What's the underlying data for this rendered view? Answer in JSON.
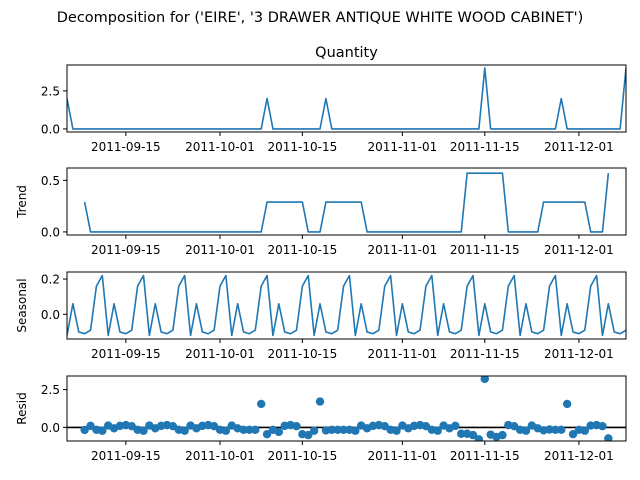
{
  "figure": {
    "suptitle": "Decomposition for ('EIRE', '3 DRAWER ANTIQUE WHITE WOOD CABINET')"
  },
  "colors": {
    "line": "#1f77b4",
    "axis": "#000000",
    "zero_line": "#000000"
  },
  "chart_data": [
    {
      "type": "line",
      "title": "Quantity",
      "ylabel": "",
      "xlim": [
        "2011-09-05",
        "2011-12-09"
      ],
      "ylim": [
        -0.2,
        4.2
      ],
      "xticks": [
        "2011-09-15",
        "2011-10-01",
        "2011-10-15",
        "2011-11-01",
        "2011-11-15",
        "2011-12-01"
      ],
      "yticks": [
        0.0,
        2.5
      ],
      "ytick_labels": [
        "0.0",
        "2.5"
      ],
      "series": [
        {
          "x": [
            "2011-09-05",
            "2011-09-06",
            "2011-09-07",
            "2011-09-08",
            "2011-09-09",
            "2011-09-10",
            "2011-09-11",
            "2011-09-12",
            "2011-09-13",
            "2011-09-14",
            "2011-09-15",
            "2011-09-16",
            "2011-09-17",
            "2011-09-18",
            "2011-09-19",
            "2011-09-20",
            "2011-09-21",
            "2011-09-22",
            "2011-09-23",
            "2011-09-24",
            "2011-09-25",
            "2011-09-26",
            "2011-09-27",
            "2011-09-28",
            "2011-09-29",
            "2011-09-30",
            "2011-10-01",
            "2011-10-02",
            "2011-10-03",
            "2011-10-04",
            "2011-10-05",
            "2011-10-06",
            "2011-10-07",
            "2011-10-08",
            "2011-10-09",
            "2011-10-10",
            "2011-10-11",
            "2011-10-12",
            "2011-10-13",
            "2011-10-14",
            "2011-10-15",
            "2011-10-16",
            "2011-10-17",
            "2011-10-18",
            "2011-10-19",
            "2011-10-20",
            "2011-10-21",
            "2011-10-22",
            "2011-10-23",
            "2011-10-24",
            "2011-10-25",
            "2011-10-26",
            "2011-10-27",
            "2011-10-28",
            "2011-10-29",
            "2011-10-30",
            "2011-10-31",
            "2011-11-01",
            "2011-11-02",
            "2011-11-03",
            "2011-11-04",
            "2011-11-05",
            "2011-11-06",
            "2011-11-07",
            "2011-11-08",
            "2011-11-09",
            "2011-11-10",
            "2011-11-11",
            "2011-11-12",
            "2011-11-13",
            "2011-11-14",
            "2011-11-15",
            "2011-11-16",
            "2011-11-17",
            "2011-11-18",
            "2011-11-19",
            "2011-11-20",
            "2011-11-21",
            "2011-11-22",
            "2011-11-23",
            "2011-11-24",
            "2011-11-25",
            "2011-11-26",
            "2011-11-27",
            "2011-11-28",
            "2011-11-29",
            "2011-11-30",
            "2011-12-01",
            "2011-12-02",
            "2011-12-03",
            "2011-12-04",
            "2011-12-05",
            "2011-12-06",
            "2011-12-07",
            "2011-12-08",
            "2011-12-09"
          ],
          "values": [
            2,
            0,
            0,
            0,
            0,
            0,
            0,
            0,
            0,
            0,
            0,
            0,
            0,
            0,
            0,
            0,
            0,
            0,
            0,
            0,
            0,
            0,
            0,
            0,
            0,
            0,
            0,
            0,
            0,
            0,
            0,
            0,
            0,
            0,
            2,
            0,
            0,
            0,
            0,
            0,
            0,
            0,
            0,
            0,
            2,
            0,
            0,
            0,
            0,
            0,
            0,
            0,
            0,
            0,
            0,
            0,
            0,
            0,
            0,
            0,
            0,
            0,
            0,
            0,
            0,
            0,
            0,
            0,
            0,
            0,
            0,
            4,
            0,
            0,
            0,
            0,
            0,
            0,
            0,
            0,
            0,
            0,
            0,
            0,
            2,
            0,
            0,
            0,
            0,
            0,
            0,
            0,
            0,
            0,
            0,
            4
          ]
        }
      ]
    },
    {
      "type": "line",
      "title": "",
      "ylabel": "Trend",
      "xlim": [
        "2011-09-05",
        "2011-12-09"
      ],
      "ylim": [
        -0.03,
        0.62
      ],
      "xticks": [
        "2011-09-15",
        "2011-10-01",
        "2011-10-15",
        "2011-11-01",
        "2011-11-15",
        "2011-12-01"
      ],
      "yticks": [
        0.0,
        0.5
      ],
      "ytick_labels": [
        "0.0",
        "0.5"
      ],
      "series": [
        {
          "x": [
            "2011-09-08",
            "2011-09-09",
            "2011-09-10",
            "2011-09-11",
            "2011-09-12",
            "2011-09-13",
            "2011-09-14",
            "2011-09-15",
            "2011-09-16",
            "2011-09-17",
            "2011-09-18",
            "2011-09-19",
            "2011-09-20",
            "2011-09-21",
            "2011-09-22",
            "2011-09-23",
            "2011-09-24",
            "2011-09-25",
            "2011-09-26",
            "2011-09-27",
            "2011-09-28",
            "2011-09-29",
            "2011-09-30",
            "2011-10-01",
            "2011-10-02",
            "2011-10-03",
            "2011-10-04",
            "2011-10-05",
            "2011-10-06",
            "2011-10-07",
            "2011-10-08",
            "2011-10-09",
            "2011-10-10",
            "2011-10-11",
            "2011-10-12",
            "2011-10-13",
            "2011-10-14",
            "2011-10-15",
            "2011-10-16",
            "2011-10-17",
            "2011-10-18",
            "2011-10-19",
            "2011-10-20",
            "2011-10-21",
            "2011-10-22",
            "2011-10-23",
            "2011-10-24",
            "2011-10-25",
            "2011-10-26",
            "2011-10-27",
            "2011-10-28",
            "2011-10-29",
            "2011-10-30",
            "2011-10-31",
            "2011-11-01",
            "2011-11-02",
            "2011-11-03",
            "2011-11-04",
            "2011-11-05",
            "2011-11-06",
            "2011-11-07",
            "2011-11-08",
            "2011-11-09",
            "2011-11-10",
            "2011-11-11",
            "2011-11-12",
            "2011-11-13",
            "2011-11-14",
            "2011-11-15",
            "2011-11-16",
            "2011-11-17",
            "2011-11-18",
            "2011-11-19",
            "2011-11-20",
            "2011-11-21",
            "2011-11-22",
            "2011-11-23",
            "2011-11-24",
            "2011-11-25",
            "2011-11-26",
            "2011-11-27",
            "2011-11-28",
            "2011-11-29",
            "2011-11-30",
            "2011-12-01",
            "2011-12-02",
            "2011-12-03",
            "2011-12-04",
            "2011-12-05",
            "2011-12-06"
          ],
          "values": [
            0.29,
            0.0,
            0.0,
            0.0,
            0.0,
            0.0,
            0.0,
            0.0,
            0.0,
            0.0,
            0.0,
            0.0,
            0.0,
            0.0,
            0.0,
            0.0,
            0.0,
            0.0,
            0.0,
            0.0,
            0.0,
            0.0,
            0.0,
            0.0,
            0.0,
            0.0,
            0.0,
            0.0,
            0.0,
            0.0,
            0.0,
            0.29,
            0.29,
            0.29,
            0.29,
            0.29,
            0.29,
            0.29,
            0.0,
            0.0,
            0.0,
            0.29,
            0.29,
            0.29,
            0.29,
            0.29,
            0.29,
            0.29,
            0.0,
            0.0,
            0.0,
            0.0,
            0.0,
            0.0,
            0.0,
            0.0,
            0.0,
            0.0,
            0.0,
            0.0,
            0.0,
            0.0,
            0.0,
            0.0,
            0.0,
            0.57,
            0.57,
            0.57,
            0.57,
            0.57,
            0.57,
            0.57,
            0.0,
            0.0,
            0.0,
            0.0,
            0.0,
            0.0,
            0.29,
            0.29,
            0.29,
            0.29,
            0.29,
            0.29,
            0.29,
            0.29,
            0.0,
            0.0,
            0.0,
            0.57
          ]
        }
      ]
    },
    {
      "type": "line",
      "title": "",
      "ylabel": "Seasonal",
      "xlim": [
        "2011-09-05",
        "2011-12-09"
      ],
      "ylim": [
        -0.14,
        0.24
      ],
      "xticks": [
        "2011-09-15",
        "2011-10-01",
        "2011-10-15",
        "2011-11-01",
        "2011-11-15",
        "2011-12-01"
      ],
      "yticks": [
        0.0,
        0.2
      ],
      "ytick_labels": [
        "0.0",
        "0.2"
      ],
      "period_values": [
        -0.12,
        0.06,
        -0.1,
        -0.11,
        -0.09,
        0.16,
        0.22
      ],
      "series": [
        {
          "x_start": "2011-09-05",
          "x_end": "2011-12-09"
        }
      ]
    },
    {
      "type": "scatter",
      "title": "",
      "ylabel": "Resid",
      "xlim": [
        "2011-09-05",
        "2011-12-09"
      ],
      "ylim": [
        -0.9,
        3.4
      ],
      "xticks": [
        "2011-09-15",
        "2011-10-01",
        "2011-10-15",
        "2011-11-01",
        "2011-11-15",
        "2011-12-01"
      ],
      "yticks": [
        0.0,
        2.5
      ],
      "ytick_labels": [
        "0.0",
        "2.5"
      ],
      "zero_line": true,
      "series": [
        {
          "x": [
            "2011-09-08",
            "2011-09-09",
            "2011-09-10",
            "2011-09-11",
            "2011-09-12",
            "2011-09-13",
            "2011-09-14",
            "2011-09-15",
            "2011-09-16",
            "2011-09-17",
            "2011-09-18",
            "2011-09-19",
            "2011-09-20",
            "2011-09-21",
            "2011-09-22",
            "2011-09-23",
            "2011-09-24",
            "2011-09-25",
            "2011-09-26",
            "2011-09-27",
            "2011-09-28",
            "2011-09-29",
            "2011-09-30",
            "2011-10-01",
            "2011-10-02",
            "2011-10-03",
            "2011-10-04",
            "2011-10-05",
            "2011-10-06",
            "2011-10-07",
            "2011-10-08",
            "2011-10-09",
            "2011-10-10",
            "2011-10-11",
            "2011-10-12",
            "2011-10-13",
            "2011-10-14",
            "2011-10-15",
            "2011-10-16",
            "2011-10-17",
            "2011-10-18",
            "2011-10-19",
            "2011-10-20",
            "2011-10-21",
            "2011-10-22",
            "2011-10-23",
            "2011-10-24",
            "2011-10-25",
            "2011-10-26",
            "2011-10-27",
            "2011-10-28",
            "2011-10-29",
            "2011-10-30",
            "2011-10-31",
            "2011-11-01",
            "2011-11-02",
            "2011-11-03",
            "2011-11-04",
            "2011-11-05",
            "2011-11-06",
            "2011-11-07",
            "2011-11-08",
            "2011-11-09",
            "2011-11-10",
            "2011-11-11",
            "2011-11-12",
            "2011-11-13",
            "2011-11-14",
            "2011-11-15",
            "2011-11-16",
            "2011-11-17",
            "2011-11-18",
            "2011-11-19",
            "2011-11-20",
            "2011-11-21",
            "2011-11-22",
            "2011-11-23",
            "2011-11-24",
            "2011-11-25",
            "2011-11-26",
            "2011-11-27",
            "2011-11-28",
            "2011-11-29",
            "2011-11-30",
            "2011-12-01",
            "2011-12-02",
            "2011-12-03",
            "2011-12-04",
            "2011-12-05",
            "2011-12-06"
          ],
          "values": [
            -0.17,
            0.1,
            -0.16,
            -0.22,
            0.12,
            -0.06,
            0.1,
            0.15,
            0.08,
            -0.16,
            -0.22,
            0.12,
            -0.06,
            0.1,
            0.15,
            0.08,
            -0.16,
            -0.22,
            0.12,
            -0.06,
            0.1,
            0.15,
            0.08,
            -0.16,
            -0.22,
            0.12,
            -0.06,
            -0.16,
            -0.16,
            -0.16,
            1.55,
            -0.45,
            -0.16,
            -0.3,
            0.1,
            0.15,
            0.08,
            -0.45,
            -0.51,
            -0.22,
            1.71,
            -0.2,
            -0.16,
            -0.16,
            -0.16,
            -0.16,
            -0.22,
            0.12,
            -0.06,
            0.1,
            0.15,
            0.08,
            -0.16,
            -0.22,
            0.12,
            -0.06,
            0.1,
            0.15,
            0.08,
            -0.16,
            -0.22,
            0.12,
            -0.06,
            0.1,
            -0.42,
            -0.42,
            -0.51,
            -0.79,
            3.21,
            -0.48,
            -0.63,
            -0.51,
            0.15,
            0.08,
            -0.16,
            -0.22,
            0.12,
            -0.06,
            -0.19,
            -0.14,
            -0.16,
            -0.16,
            1.55,
            -0.45,
            -0.16,
            -0.22,
            0.12,
            0.15,
            0.08,
            -0.73
          ]
        }
      ]
    }
  ]
}
